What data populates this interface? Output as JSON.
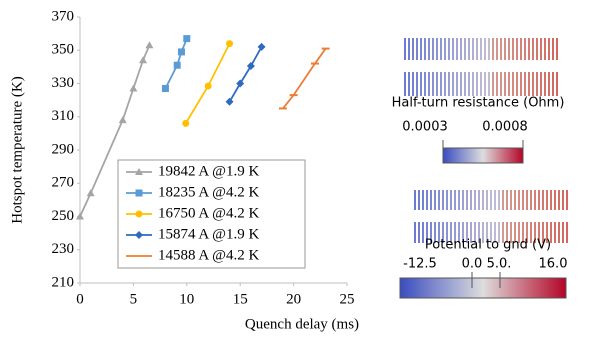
{
  "chart_data": {
    "type": "line",
    "x_label": "Quench delay (ms)",
    "y_label": "Hotspot temperature (K)",
    "xlim": [
      0,
      25
    ],
    "xticks": [
      0,
      5,
      10,
      15,
      20,
      25
    ],
    "ylim": [
      210,
      370
    ],
    "yticks": [
      210,
      230,
      250,
      270,
      290,
      310,
      330,
      350,
      370
    ],
    "series": [
      {
        "name": "19842 A @1.9 K",
        "color": "#a5a5a5",
        "marker": "triangle",
        "x": [
          0,
          1,
          4,
          5,
          5.9,
          6.5
        ],
        "values": [
          250,
          264,
          308,
          327,
          344,
          353
        ]
      },
      {
        "name": "18235 A @4.2 K",
        "color": "#5b9bd5",
        "marker": "square",
        "x": [
          8,
          9.1,
          9.5,
          10
        ],
        "values": [
          327,
          341,
          349,
          357
        ]
      },
      {
        "name": "16750 A @4.2 K",
        "color": "#ffc000",
        "marker": "circle",
        "x": [
          9.9,
          12,
          14
        ],
        "values": [
          306,
          328.5,
          354
        ]
      },
      {
        "name": "15874 A @1.9 K",
        "color": "#2f6ac0",
        "marker": "diamond",
        "x": [
          14,
          15,
          16,
          17
        ],
        "values": [
          319,
          330,
          340.5,
          352
        ]
      },
      {
        "name": "14588 A @4.2 K",
        "color": "#ed7d31",
        "marker": "dash",
        "x": [
          19,
          20,
          22,
          23
        ],
        "values": [
          315,
          323,
          342,
          351
        ]
      }
    ]
  },
  "colorbars": [
    {
      "title": "Half-turn resistance (Ohm)",
      "labels": [
        "0.0003",
        "0.0008"
      ]
    },
    {
      "title": "Potential to gnd (V)",
      "labels": [
        "-12.5",
        "0.0",
        "5.0.",
        "16.0"
      ]
    }
  ]
}
